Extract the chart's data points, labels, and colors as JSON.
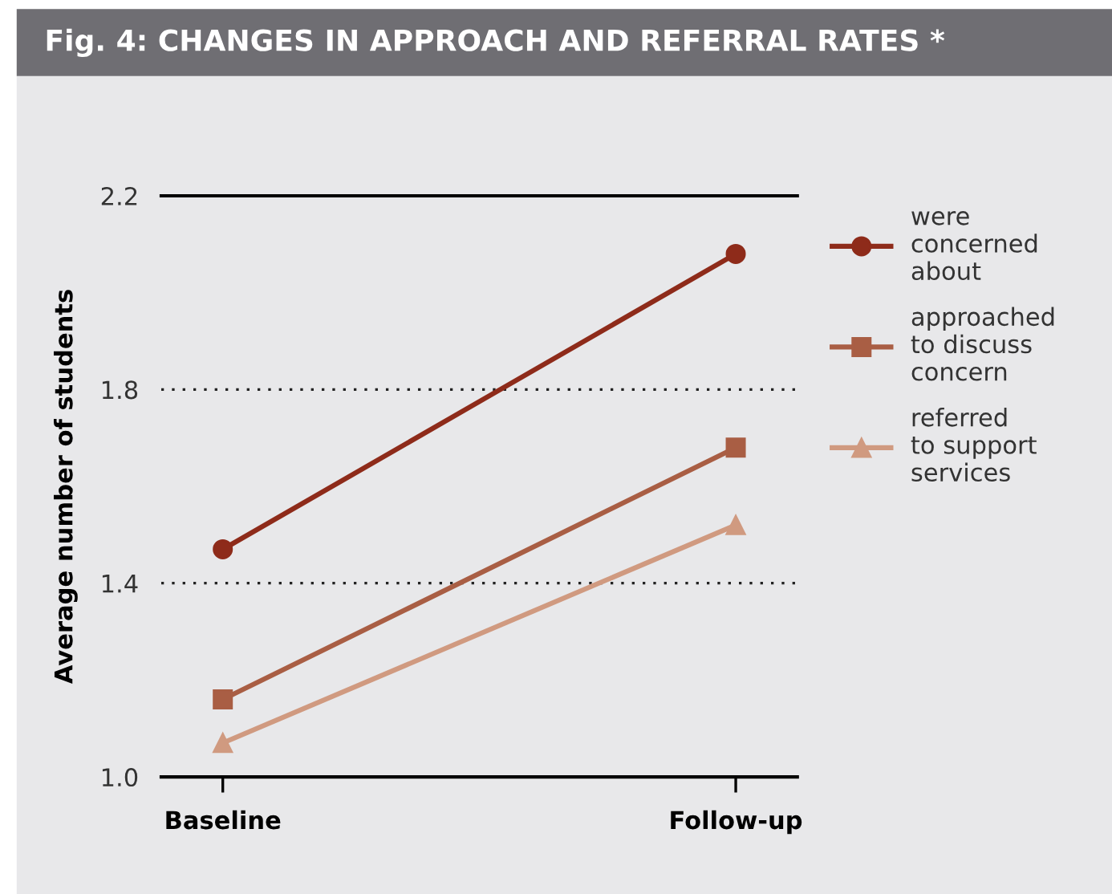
{
  "chart_data": {
    "type": "line",
    "title": "Fig. 4: CHANGES IN APPROACH AND REFERRAL RATES *",
    "ylabel": "Average number of students",
    "categories": [
      "Baseline",
      "Follow-up"
    ],
    "series": [
      {
        "name": "were\nconcerned\nabout",
        "color": "#8e2b1a",
        "marker": "circle",
        "values": [
          1.47,
          2.08
        ]
      },
      {
        "name": "approached\nto discuss\nconcern",
        "color": "#a95e44",
        "marker": "square",
        "values": [
          1.16,
          1.68
        ]
      },
      {
        "name": "referred\nto support\nservices",
        "color": "#d09a80",
        "marker": "triangle",
        "values": [
          1.07,
          1.52
        ]
      }
    ],
    "ylim": [
      1.0,
      2.2
    ],
    "yticks": [
      {
        "value": 1.0,
        "label": "1.0"
      },
      1.4,
      1.8,
      2.2
    ],
    "grid": "y",
    "line_style": "solid",
    "legend": "right"
  }
}
